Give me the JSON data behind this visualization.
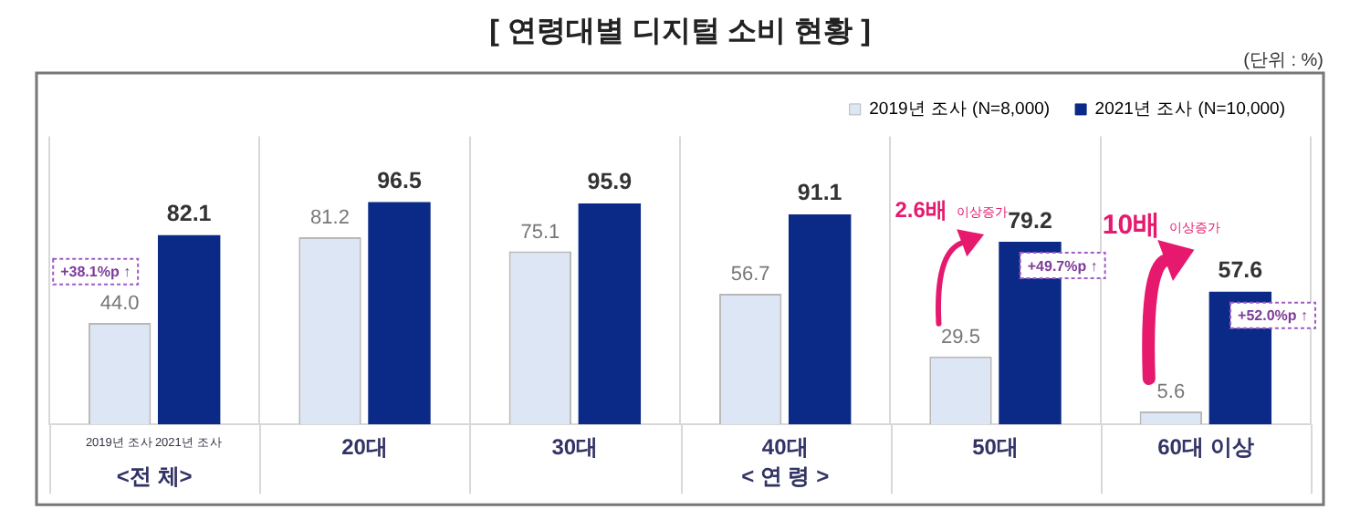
{
  "chart_data": {
    "type": "bar",
    "title": "[ 연령대별 디지털 소비 현황 ]",
    "categories": [
      null,
      "20대",
      "30대",
      "40대",
      "50대",
      "60대 이상"
    ],
    "series": [
      {
        "name": "2019년 조사 (N=8,000)",
        "color": "#dce6f4",
        "values": [
          44.0,
          81.2,
          75.1,
          56.7,
          29.5,
          5.6
        ],
        "value_labels": [
          "44.0",
          "81.2",
          "75.1",
          "56.7",
          "29.5",
          "5.6"
        ]
      },
      {
        "name": "2021년 조사 (N=10,000)",
        "color": "#0b2a87",
        "values": [
          82.1,
          96.5,
          95.9,
          91.1,
          79.2,
          57.6
        ],
        "value_labels": [
          "82.1",
          "96.5",
          "95.9",
          "91.1",
          "79.2",
          "57.6"
        ]
      }
    ],
    "ylim": [
      0,
      125
    ],
    "tick_labels": "x",
    "grid": "x",
    "legend": "top right",
    "annotations": [
      "(단위 : %)",
      "2019년 조사",
      "2021년 조사",
      "<전 체>",
      "< 연 령 >",
      "+38.1%p ↑",
      "2.6배 이상증가",
      "10배 이상증가",
      "+49.7%p ↑",
      "+52.0%p ↑"
    ]
  }
}
